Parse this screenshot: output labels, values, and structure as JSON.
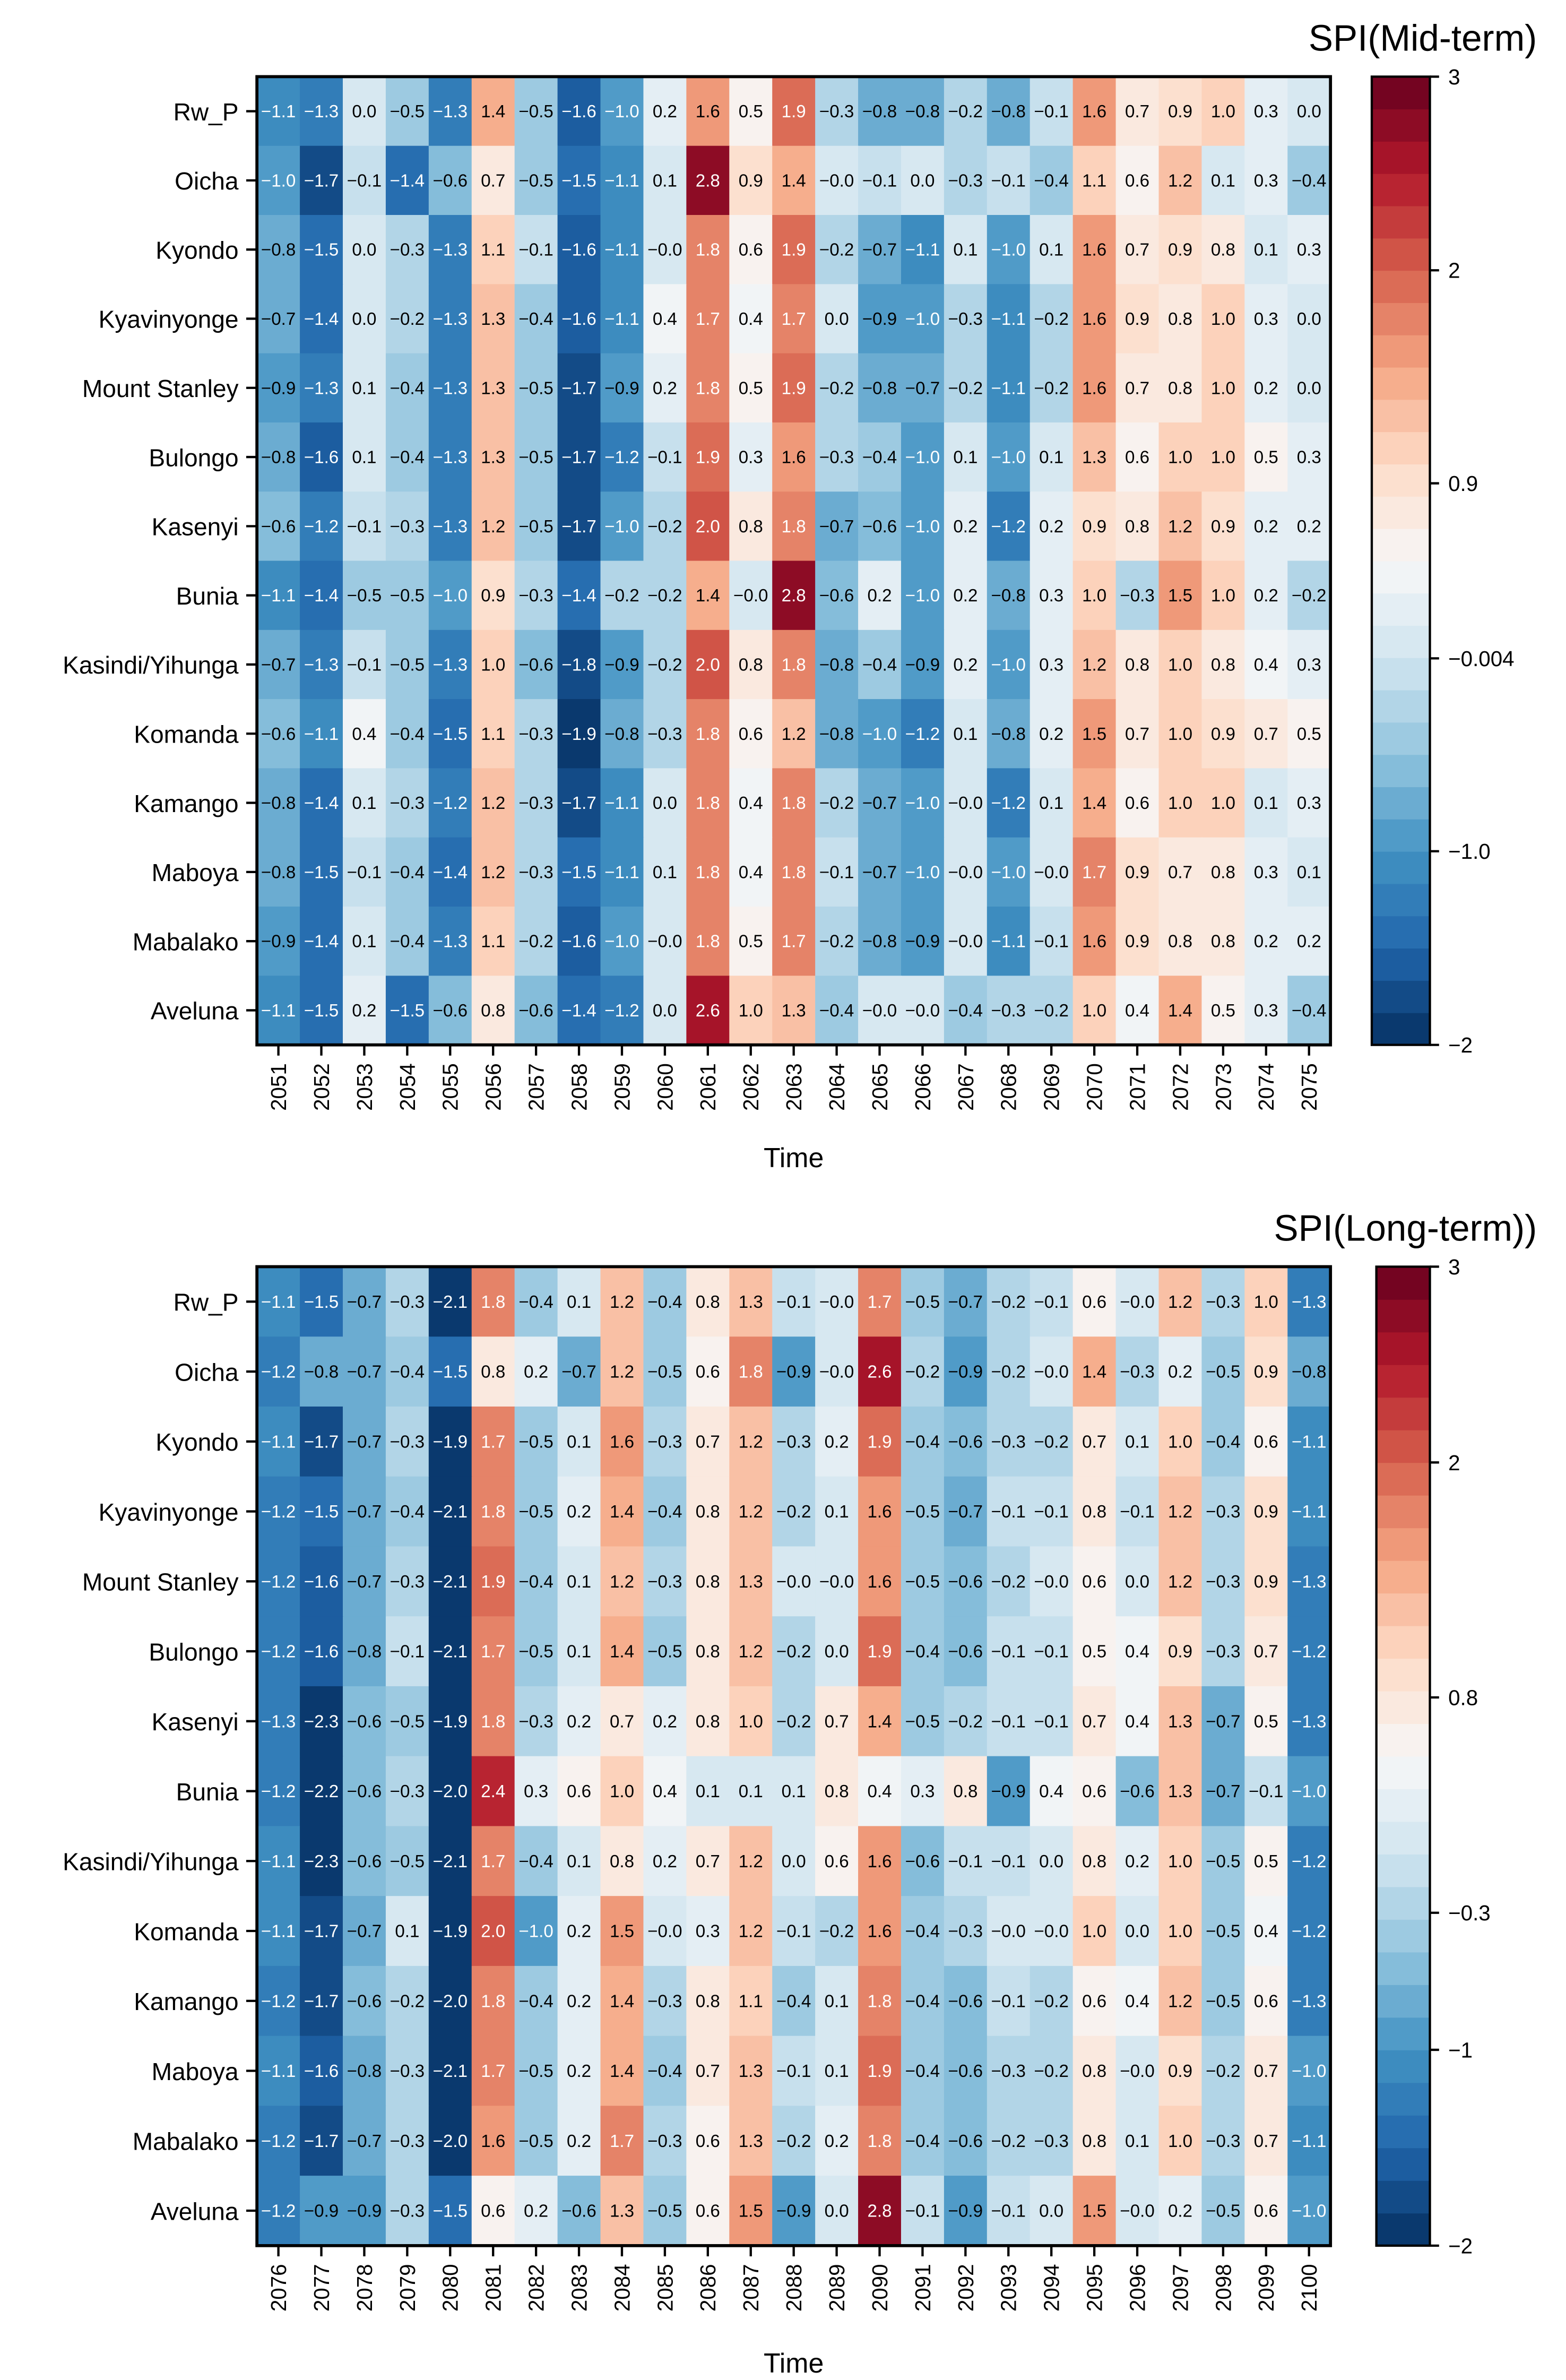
{
  "chart_data": [
    {
      "type": "heatmap",
      "title": "SPI(Mid-term)",
      "xlabel": "Time",
      "ylabel": "",
      "colormap": "RdBu_r",
      "vlim": [
        -2,
        3
      ],
      "colorbar_ticks": [
        {
          "value": 3,
          "label": "3"
        },
        {
          "value": 2,
          "label": "2"
        },
        {
          "value": 0.9,
          "label": "0.9"
        },
        {
          "value": -0.004,
          "label": "−0.004"
        },
        {
          "value": -1.0,
          "label": "−1.0"
        },
        {
          "value": -2,
          "label": "−2"
        }
      ],
      "x": [
        "2051",
        "2052",
        "2053",
        "2054",
        "2055",
        "2056",
        "2057",
        "2058",
        "2059",
        "2060",
        "2061",
        "2062",
        "2063",
        "2064",
        "2065",
        "2066",
        "2067",
        "2068",
        "2069",
        "2070",
        "2071",
        "2072",
        "2073",
        "2074",
        "2075"
      ],
      "y": [
        "Rw_P",
        "Oicha",
        "Kyondo",
        "Kyavinyonge",
        "Mount Stanley",
        "Bulongo",
        "Kasenyi",
        "Bunia",
        "Kasindi/Yihunga",
        "Komanda",
        "Kamango",
        "Maboya",
        "Mabalako",
        "Aveluna"
      ],
      "values": [
        [
          "-1.1",
          "-1.3",
          "0.0",
          "-0.5",
          "-1.3",
          "1.4",
          "-0.5",
          "-1.6",
          "-1.0",
          "0.2",
          "1.6",
          "0.5",
          "1.9",
          "-0.3",
          "-0.8",
          "-0.8",
          "-0.2",
          "-0.8",
          "-0.1",
          "1.6",
          "0.7",
          "0.9",
          "1.0",
          "0.3",
          "0.0"
        ],
        [
          "-1.0",
          "-1.7",
          "-0.1",
          "-1.4",
          "-0.6",
          "0.7",
          "-0.5",
          "-1.5",
          "-1.1",
          "0.1",
          "2.8",
          "0.9",
          "1.4",
          "-0.0",
          "-0.1",
          "0.0",
          "-0.3",
          "-0.1",
          "-0.4",
          "1.1",
          "0.6",
          "1.2",
          "0.1",
          "0.3",
          "-0.4"
        ],
        [
          "-0.8",
          "-1.5",
          "0.0",
          "-0.3",
          "-1.3",
          "1.1",
          "-0.1",
          "-1.6",
          "-1.1",
          "-0.0",
          "1.8",
          "0.6",
          "1.9",
          "-0.2",
          "-0.7",
          "-1.1",
          "0.1",
          "-1.0",
          "0.1",
          "1.6",
          "0.7",
          "0.9",
          "0.8",
          "0.1",
          "0.3"
        ],
        [
          "-0.7",
          "-1.4",
          "0.0",
          "-0.2",
          "-1.3",
          "1.3",
          "-0.4",
          "-1.6",
          "-1.1",
          "0.4",
          "1.7",
          "0.4",
          "1.7",
          "0.0",
          "-0.9",
          "-1.0",
          "-0.3",
          "-1.1",
          "-0.2",
          "1.6",
          "0.9",
          "0.8",
          "1.0",
          "0.3",
          "0.0"
        ],
        [
          "-0.9",
          "-1.3",
          "0.1",
          "-0.4",
          "-1.3",
          "1.3",
          "-0.5",
          "-1.7",
          "-0.9",
          "0.2",
          "1.8",
          "0.5",
          "1.9",
          "-0.2",
          "-0.8",
          "-0.7",
          "-0.2",
          "-1.1",
          "-0.2",
          "1.6",
          "0.7",
          "0.8",
          "1.0",
          "0.2",
          "0.0"
        ],
        [
          "-0.8",
          "-1.6",
          "0.1",
          "-0.4",
          "-1.3",
          "1.3",
          "-0.5",
          "-1.7",
          "-1.2",
          "-0.1",
          "1.9",
          "0.3",
          "1.6",
          "-0.3",
          "-0.4",
          "-1.0",
          "0.1",
          "-1.0",
          "0.1",
          "1.3",
          "0.6",
          "1.0",
          "1.0",
          "0.5",
          "0.3"
        ],
        [
          "-0.6",
          "-1.2",
          "-0.1",
          "-0.3",
          "-1.3",
          "1.2",
          "-0.5",
          "-1.7",
          "-1.0",
          "-0.2",
          "2.0",
          "0.8",
          "1.8",
          "-0.7",
          "-0.6",
          "-1.0",
          "0.2",
          "-1.2",
          "0.2",
          "0.9",
          "0.8",
          "1.2",
          "0.9",
          "0.2",
          "0.2"
        ],
        [
          "-1.1",
          "-1.4",
          "-0.5",
          "-0.5",
          "-1.0",
          "0.9",
          "-0.3",
          "-1.4",
          "-0.2",
          "-0.2",
          "1.4",
          "-0.0",
          "2.8",
          "-0.6",
          "0.2",
          "-1.0",
          "0.2",
          "-0.8",
          "0.3",
          "1.0",
          "-0.3",
          "1.5",
          "1.0",
          "0.2",
          "-0.2"
        ],
        [
          "-0.7",
          "-1.3",
          "-0.1",
          "-0.5",
          "-1.3",
          "1.0",
          "-0.6",
          "-1.8",
          "-0.9",
          "-0.2",
          "2.0",
          "0.8",
          "1.8",
          "-0.8",
          "-0.4",
          "-0.9",
          "0.2",
          "-1.0",
          "0.3",
          "1.2",
          "0.8",
          "1.0",
          "0.8",
          "0.4",
          "0.3"
        ],
        [
          "-0.6",
          "-1.1",
          "0.4",
          "-0.4",
          "-1.5",
          "1.1",
          "-0.3",
          "-1.9",
          "-0.8",
          "-0.3",
          "1.8",
          "0.6",
          "1.2",
          "-0.8",
          "-1.0",
          "-1.2",
          "0.1",
          "-0.8",
          "0.2",
          "1.5",
          "0.7",
          "1.0",
          "0.9",
          "0.7",
          "0.5"
        ],
        [
          "-0.8",
          "-1.4",
          "0.1",
          "-0.3",
          "-1.2",
          "1.2",
          "-0.3",
          "-1.7",
          "-1.1",
          "0.0",
          "1.8",
          "0.4",
          "1.8",
          "-0.2",
          "-0.7",
          "-1.0",
          "-0.0",
          "-1.2",
          "0.1",
          "1.4",
          "0.6",
          "1.0",
          "1.0",
          "0.1",
          "0.3"
        ],
        [
          "-0.8",
          "-1.5",
          "-0.1",
          "-0.4",
          "-1.4",
          "1.2",
          "-0.3",
          "-1.5",
          "-1.1",
          "0.1",
          "1.8",
          "0.4",
          "1.8",
          "-0.1",
          "-0.7",
          "-1.0",
          "-0.0",
          "-1.0",
          "-0.0",
          "1.7",
          "0.9",
          "0.7",
          "0.8",
          "0.3",
          "0.1"
        ],
        [
          "-0.9",
          "-1.4",
          "0.1",
          "-0.4",
          "-1.3",
          "1.1",
          "-0.2",
          "-1.6",
          "-1.0",
          "-0.0",
          "1.8",
          "0.5",
          "1.7",
          "-0.2",
          "-0.8",
          "-0.9",
          "-0.0",
          "-1.1",
          "-0.1",
          "1.6",
          "0.9",
          "0.8",
          "0.8",
          "0.2",
          "0.2"
        ],
        [
          "-1.1",
          "-1.5",
          "0.2",
          "-1.5",
          "-0.6",
          "0.8",
          "-0.6",
          "-1.4",
          "-1.2",
          "0.0",
          "2.6",
          "1.0",
          "1.3",
          "-0.4",
          "-0.0",
          "-0.0",
          "-0.4",
          "-0.3",
          "-0.2",
          "1.0",
          "0.4",
          "1.4",
          "0.5",
          "0.3",
          "-0.4"
        ]
      ]
    },
    {
      "type": "heatmap",
      "title": "SPI(Long-term))",
      "xlabel": "Time",
      "ylabel": "",
      "colormap": "RdBu_r",
      "vlim": [
        -2,
        3
      ],
      "colorbar_ticks": [
        {
          "value": 3,
          "label": "3"
        },
        {
          "value": 2,
          "label": "2"
        },
        {
          "value": 0.8,
          "label": "0.8"
        },
        {
          "value": -0.3,
          "label": "−0.3"
        },
        {
          "value": -1,
          "label": "−1"
        },
        {
          "value": -2,
          "label": "−2"
        }
      ],
      "x": [
        "2076",
        "2077",
        "2078",
        "2079",
        "2080",
        "2081",
        "2082",
        "2083",
        "2084",
        "2085",
        "2086",
        "2087",
        "2088",
        "2089",
        "2090",
        "2091",
        "2092",
        "2093",
        "2094",
        "2095",
        "2096",
        "2097",
        "2098",
        "2099",
        "2100"
      ],
      "y": [
        "Rw_P",
        "Oicha",
        "Kyondo",
        "Kyavinyonge",
        "Mount Stanley",
        "Bulongo",
        "Kasenyi",
        "Bunia",
        "Kasindi/Yihunga",
        "Komanda",
        "Kamango",
        "Maboya",
        "Mabalako",
        "Aveluna"
      ],
      "values": [
        [
          "-1.1",
          "-1.5",
          "-0.7",
          "-0.3",
          "-2.1",
          "1.8",
          "-0.4",
          "0.1",
          "1.2",
          "-0.4",
          "0.8",
          "1.3",
          "-0.1",
          "-0.0",
          "1.7",
          "-0.5",
          "-0.7",
          "-0.2",
          "-0.1",
          "0.6",
          "-0.0",
          "1.2",
          "-0.3",
          "1.0",
          "-1.3"
        ],
        [
          "-1.2",
          "-0.8",
          "-0.7",
          "-0.4",
          "-1.5",
          "0.8",
          "0.2",
          "-0.7",
          "1.2",
          "-0.5",
          "0.6",
          "1.8",
          "-0.9",
          "-0.0",
          "2.6",
          "-0.2",
          "-0.9",
          "-0.2",
          "-0.0",
          "1.4",
          "-0.3",
          "0.2",
          "-0.5",
          "0.9",
          "-0.8"
        ],
        [
          "-1.1",
          "-1.7",
          "-0.7",
          "-0.3",
          "-1.9",
          "1.7",
          "-0.5",
          "0.1",
          "1.6",
          "-0.3",
          "0.7",
          "1.2",
          "-0.3",
          "0.2",
          "1.9",
          "-0.4",
          "-0.6",
          "-0.3",
          "-0.2",
          "0.7",
          "0.1",
          "1.0",
          "-0.4",
          "0.6",
          "-1.1"
        ],
        [
          "-1.2",
          "-1.5",
          "-0.7",
          "-0.4",
          "-2.1",
          "1.8",
          "-0.5",
          "0.2",
          "1.4",
          "-0.4",
          "0.8",
          "1.2",
          "-0.2",
          "0.1",
          "1.6",
          "-0.5",
          "-0.7",
          "-0.1",
          "-0.1",
          "0.8",
          "-0.1",
          "1.2",
          "-0.3",
          "0.9",
          "-1.1"
        ],
        [
          "-1.2",
          "-1.6",
          "-0.7",
          "-0.3",
          "-2.1",
          "1.9",
          "-0.4",
          "0.1",
          "1.2",
          "-0.3",
          "0.8",
          "1.3",
          "-0.0",
          "-0.0",
          "1.6",
          "-0.5",
          "-0.6",
          "-0.2",
          "-0.0",
          "0.6",
          "0.0",
          "1.2",
          "-0.3",
          "0.9",
          "-1.3"
        ],
        [
          "-1.2",
          "-1.6",
          "-0.8",
          "-0.1",
          "-2.1",
          "1.7",
          "-0.5",
          "0.1",
          "1.4",
          "-0.5",
          "0.8",
          "1.2",
          "-0.2",
          "0.0",
          "1.9",
          "-0.4",
          "-0.6",
          "-0.1",
          "-0.1",
          "0.5",
          "0.4",
          "0.9",
          "-0.3",
          "0.7",
          "-1.2"
        ],
        [
          "-1.3",
          "-2.3",
          "-0.6",
          "-0.5",
          "-1.9",
          "1.8",
          "-0.3",
          "0.2",
          "0.7",
          "0.2",
          "0.8",
          "1.0",
          "-0.2",
          "0.7",
          "1.4",
          "-0.5",
          "-0.2",
          "-0.1",
          "-0.1",
          "0.7",
          "0.4",
          "1.3",
          "-0.7",
          "0.5",
          "-1.3"
        ],
        [
          "-1.2",
          "-2.2",
          "-0.6",
          "-0.3",
          "-2.0",
          "2.4",
          "0.3",
          "0.6",
          "1.0",
          "0.4",
          "0.1",
          "0.1",
          "0.1",
          "0.8",
          "0.4",
          "0.3",
          "0.8",
          "-0.9",
          "0.4",
          "0.6",
          "-0.6",
          "1.3",
          "-0.7",
          "-0.1",
          "-1.0"
        ],
        [
          "-1.1",
          "-2.3",
          "-0.6",
          "-0.5",
          "-2.1",
          "1.7",
          "-0.4",
          "0.1",
          "0.8",
          "0.2",
          "0.7",
          "1.2",
          "0.0",
          "0.6",
          "1.6",
          "-0.6",
          "-0.1",
          "-0.1",
          "0.0",
          "0.8",
          "0.2",
          "1.0",
          "-0.5",
          "0.5",
          "-1.2"
        ],
        [
          "-1.1",
          "-1.7",
          "-0.7",
          "0.1",
          "-1.9",
          "2.0",
          "-1.0",
          "0.2",
          "1.5",
          "-0.0",
          "0.3",
          "1.2",
          "-0.1",
          "-0.2",
          "1.6",
          "-0.4",
          "-0.3",
          "-0.0",
          "-0.0",
          "1.0",
          "0.0",
          "1.0",
          "-0.5",
          "0.4",
          "-1.2"
        ],
        [
          "-1.2",
          "-1.7",
          "-0.6",
          "-0.2",
          "-2.0",
          "1.8",
          "-0.4",
          "0.2",
          "1.4",
          "-0.3",
          "0.8",
          "1.1",
          "-0.4",
          "0.1",
          "1.8",
          "-0.4",
          "-0.6",
          "-0.1",
          "-0.2",
          "0.6",
          "0.4",
          "1.2",
          "-0.5",
          "0.6",
          "-1.3"
        ],
        [
          "-1.1",
          "-1.6",
          "-0.8",
          "-0.3",
          "-2.1",
          "1.7",
          "-0.5",
          "0.2",
          "1.4",
          "-0.4",
          "0.7",
          "1.3",
          "-0.1",
          "0.1",
          "1.9",
          "-0.4",
          "-0.6",
          "-0.3",
          "-0.2",
          "0.8",
          "-0.0",
          "0.9",
          "-0.2",
          "0.7",
          "-1.0"
        ],
        [
          "-1.2",
          "-1.7",
          "-0.7",
          "-0.3",
          "-2.0",
          "1.6",
          "-0.5",
          "0.2",
          "1.7",
          "-0.3",
          "0.6",
          "1.3",
          "-0.2",
          "0.2",
          "1.8",
          "-0.4",
          "-0.6",
          "-0.2",
          "-0.3",
          "0.8",
          "0.1",
          "1.0",
          "-0.3",
          "0.7",
          "-1.1"
        ],
        [
          "-1.2",
          "-0.9",
          "-0.9",
          "-0.3",
          "-1.5",
          "0.6",
          "0.2",
          "-0.6",
          "1.3",
          "-0.5",
          "0.6",
          "1.5",
          "-0.9",
          "0.0",
          "2.8",
          "-0.1",
          "-0.9",
          "-0.1",
          "0.0",
          "1.5",
          "-0.0",
          "0.2",
          "-0.5",
          "0.6",
          "-1.0"
        ]
      ]
    }
  ]
}
